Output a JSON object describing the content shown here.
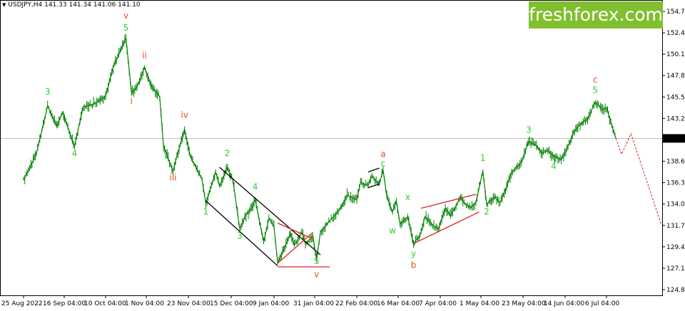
{
  "header": {
    "symbol": "USDJPY,H4",
    "quote": "141.33 141.34 141.06 141.10"
  },
  "watermark": "freshforex.com",
  "colors": {
    "candle": "#008000",
    "wave_green": "#2ecc2e",
    "wave_red": "#e0501e",
    "channel_red": "#e02020",
    "channel_black": "#000000",
    "forecast": "#e02020",
    "price_tag_bg": "#000000",
    "brand": "#80bf2f"
  },
  "chart_data": {
    "type": "line",
    "symbol": "USDJPY",
    "timeframe": "H4",
    "ylim": [
      124.2,
      155.3
    ],
    "y_ticks": [
      154.75,
      152.45,
      150.15,
      147.85,
      145.55,
      143.25,
      141.1,
      138.65,
      136.35,
      134.05,
      131.75,
      129.45,
      127.15,
      124.85
    ],
    "y_tick_labels": [
      "154.75",
      "152.45",
      "150.15",
      "147.85",
      "145.55",
      "143.25",
      "141.10",
      "138.65",
      "136.35",
      "134.05",
      "131.75",
      "129.45",
      "127.15",
      "124.85"
    ],
    "current_price": 141.1,
    "current_price_label": "141.10",
    "x_tick_labels": [
      "25 Aug 2022",
      "16 Sep 04:00",
      "10 Oct 04:00",
      "1 Nov 04:00",
      "23 Nov 04:00",
      "15 Dec 04:00",
      "9 Jan 04:00",
      "31 Jan 04:00",
      "22 Feb 04:00",
      "16 Mar 04:00",
      "7 Apr 04:00",
      "1 May 04:00",
      "23 May 04:00",
      "14 Jun 04:00",
      "6 Jul 04:00"
    ],
    "price_path": [
      [
        "2022-08-25",
        136.6
      ],
      [
        "2022-08-29",
        138.2
      ],
      [
        "2022-09-01",
        139.5
      ],
      [
        "2022-09-07",
        144.6
      ],
      [
        "2022-09-12",
        142.4
      ],
      [
        "2022-09-15",
        143.9
      ],
      [
        "2022-09-22",
        140.3
      ],
      [
        "2022-09-27",
        144.5
      ],
      [
        "2022-10-03",
        144.8
      ],
      [
        "2022-10-10",
        145.6
      ],
      [
        "2022-10-14",
        148.7
      ],
      [
        "2022-10-21",
        151.9
      ],
      [
        "2022-10-24",
        146.0
      ],
      [
        "2022-10-27",
        146.6
      ],
      [
        "2022-10-31",
        148.7
      ],
      [
        "2022-11-04",
        146.6
      ],
      [
        "2022-11-08",
        145.6
      ],
      [
        "2022-11-10",
        140.3
      ],
      [
        "2022-11-15",
        137.6
      ],
      [
        "2022-11-17",
        139.2
      ],
      [
        "2022-11-21",
        142.1
      ],
      [
        "2022-11-24",
        139.2
      ],
      [
        "2022-11-30",
        136.7
      ],
      [
        "2022-12-02",
        134.1
      ],
      [
        "2022-12-07",
        137.5
      ],
      [
        "2022-12-09",
        136.0
      ],
      [
        "2022-12-13",
        138.0
      ],
      [
        "2022-12-16",
        136.6
      ],
      [
        "2022-12-20",
        131.4
      ],
      [
        "2022-12-23",
        132.7
      ],
      [
        "2022-12-27",
        133.6
      ],
      [
        "2022-12-29",
        134.5
      ],
      [
        "2023-01-03",
        130.0
      ],
      [
        "2023-01-06",
        132.5
      ],
      [
        "2023-01-09",
        131.6
      ],
      [
        "2023-01-11",
        127.7
      ],
      [
        "2023-01-13",
        128.6
      ],
      [
        "2023-01-18",
        130.9
      ],
      [
        "2023-01-20",
        129.6
      ],
      [
        "2023-01-24",
        131.0
      ],
      [
        "2023-01-26",
        129.8
      ],
      [
        "2023-01-30",
        130.6
      ],
      [
        "2023-02-01",
        128.1
      ],
      [
        "2023-02-03",
        131.0
      ],
      [
        "2023-02-08",
        132.3
      ],
      [
        "2023-02-13",
        133.4
      ],
      [
        "2023-02-17",
        135.0
      ],
      [
        "2023-02-22",
        134.5
      ],
      [
        "2023-02-24",
        136.4
      ],
      [
        "2023-02-28",
        136.0
      ],
      [
        "2023-03-02",
        137.0
      ],
      [
        "2023-03-06",
        136.2
      ],
      [
        "2023-03-08",
        137.7
      ],
      [
        "2023-03-10",
        134.8
      ],
      [
        "2023-03-13",
        133.2
      ],
      [
        "2023-03-15",
        134.4
      ],
      [
        "2023-03-17",
        131.9
      ],
      [
        "2023-03-21",
        132.7
      ],
      [
        "2023-03-24",
        129.7
      ],
      [
        "2023-03-28",
        131.0
      ],
      [
        "2023-03-30",
        132.7
      ],
      [
        "2023-04-03",
        131.8
      ],
      [
        "2023-04-06",
        131.4
      ],
      [
        "2023-04-10",
        133.6
      ],
      [
        "2023-04-13",
        132.8
      ],
      [
        "2023-04-17",
        134.1
      ],
      [
        "2023-04-19",
        134.8
      ],
      [
        "2023-04-21",
        134.2
      ],
      [
        "2023-04-25",
        133.7
      ],
      [
        "2023-04-28",
        134.2
      ],
      [
        "2023-05-02",
        137.6
      ],
      [
        "2023-05-04",
        134.0
      ],
      [
        "2023-05-08",
        134.8
      ],
      [
        "2023-05-11",
        134.2
      ],
      [
        "2023-05-15",
        136.2
      ],
      [
        "2023-05-17",
        137.5
      ],
      [
        "2023-05-22",
        138.5
      ],
      [
        "2023-05-26",
        140.8
      ],
      [
        "2023-05-30",
        140.3
      ],
      [
        "2023-06-02",
        139.5
      ],
      [
        "2023-06-05",
        139.8
      ],
      [
        "2023-06-08",
        139.2
      ],
      [
        "2023-06-12",
        138.8
      ],
      [
        "2023-06-15",
        140.0
      ],
      [
        "2023-06-19",
        141.9
      ],
      [
        "2023-06-22",
        142.6
      ],
      [
        "2023-06-26",
        143.2
      ],
      [
        "2023-06-28",
        144.1
      ],
      [
        "2023-06-30",
        145.0
      ],
      [
        "2023-07-04",
        144.2
      ],
      [
        "2023-07-06",
        144.4
      ],
      [
        "2023-07-10",
        141.7
      ],
      [
        "2023-07-11",
        141.1
      ]
    ],
    "forecast_path": [
      [
        "2023-07-11",
        141.1
      ],
      [
        "2023-07-14",
        139.4
      ],
      [
        "2023-07-19",
        141.6
      ],
      [
        "2023-08-04",
        131.9
      ]
    ],
    "wave_labels": [
      {
        "text": "v",
        "date": "2022-10-21",
        "price": 154.0,
        "color": "red"
      },
      {
        "text": "5",
        "date": "2022-10-21",
        "price": 152.7,
        "color": "green"
      },
      {
        "text": "ii",
        "date": "2022-10-31",
        "price": 149.7,
        "color": "red"
      },
      {
        "text": "3",
        "date": "2022-09-07",
        "price": 145.8,
        "color": "green"
      },
      {
        "text": "i",
        "date": "2022-10-24",
        "price": 144.8,
        "color": "red"
      },
      {
        "text": "iv",
        "date": "2022-11-21",
        "price": 143.3,
        "color": "red"
      },
      {
        "text": "4",
        "date": "2022-09-22",
        "price": 139.2,
        "color": "green"
      },
      {
        "text": "iii",
        "date": "2022-11-15",
        "price": 136.6,
        "color": "red"
      },
      {
        "text": "2",
        "date": "2022-12-13",
        "price": 139.2,
        "color": "green"
      },
      {
        "text": "4",
        "date": "2022-12-29",
        "price": 135.6,
        "color": "green"
      },
      {
        "text": "1",
        "date": "2022-12-02",
        "price": 132.9,
        "color": "green"
      },
      {
        "text": "3",
        "date": "2022-12-20",
        "price": 130.3,
        "color": "green"
      },
      {
        "text": "5",
        "date": "2023-02-01",
        "price": 127.6,
        "color": "green"
      },
      {
        "text": "v",
        "date": "2023-02-01",
        "price": 126.2,
        "color": "red"
      },
      {
        "text": "a",
        "date": "2023-03-08",
        "price": 139.1,
        "color": "red"
      },
      {
        "text": "c",
        "date": "2023-03-08",
        "price": 138.1,
        "color": "green"
      },
      {
        "text": "x",
        "date": "2023-03-21",
        "price": 134.5,
        "color": "green"
      },
      {
        "text": "w",
        "date": "2023-03-13",
        "price": 130.9,
        "color": "green"
      },
      {
        "text": "y",
        "date": "2023-03-24",
        "price": 128.4,
        "color": "green"
      },
      {
        "text": "b",
        "date": "2023-03-24",
        "price": 127.2,
        "color": "red"
      },
      {
        "text": "1",
        "date": "2023-05-02",
        "price": 138.7,
        "color": "green"
      },
      {
        "text": "2",
        "date": "2023-05-04",
        "price": 132.9,
        "color": "green"
      },
      {
        "text": "3",
        "date": "2023-05-26",
        "price": 141.7,
        "color": "green"
      },
      {
        "text": "4",
        "date": "2023-06-08",
        "price": 137.8,
        "color": "green"
      },
      {
        "text": "c",
        "date": "2023-06-30",
        "price": 147.1,
        "color": "red"
      },
      {
        "text": "5",
        "date": "2023-06-30",
        "price": 146.0,
        "color": "green"
      }
    ],
    "channels": [
      {
        "name": "descending-channel-upper",
        "color": "black",
        "from": [
          "2022-12-09",
          138.0
        ],
        "to": [
          "2023-02-03",
          128.6
        ]
      },
      {
        "name": "descending-channel-lower",
        "color": "black",
        "from": [
          "2022-12-02",
          134.4
        ],
        "to": [
          "2023-01-11",
          127.4
        ]
      },
      {
        "name": "triangle-upper",
        "color": "red",
        "from": [
          "2023-01-11",
          132.0
        ],
        "to": [
          "2023-01-30",
          130.3
        ]
      },
      {
        "name": "triangle-lower",
        "color": "red",
        "from": [
          "2023-01-11",
          127.7
        ],
        "to": [
          "2023-01-30",
          131.0
        ]
      },
      {
        "name": "triangle-base",
        "color": "red",
        "from": [
          "2023-01-11",
          127.3
        ],
        "to": [
          "2023-02-08",
          127.3
        ]
      },
      {
        "name": "rising-channel-upper",
        "color": "red",
        "from": [
          "2023-03-28",
          133.6
        ],
        "to": [
          "2023-04-28",
          135.1
        ]
      },
      {
        "name": "rising-channel-lower",
        "color": "red",
        "from": [
          "2023-03-24",
          129.8
        ],
        "to": [
          "2023-04-30",
          133.2
        ]
      },
      {
        "name": "flat-top-bar",
        "color": "black",
        "from": [
          "2023-02-28",
          137.5
        ],
        "to": [
          "2023-03-06",
          137.9
        ]
      },
      {
        "name": "flat-bottom-bar",
        "color": "black",
        "from": [
          "2023-02-28",
          135.8
        ],
        "to": [
          "2023-03-06",
          136.2
        ]
      }
    ]
  }
}
